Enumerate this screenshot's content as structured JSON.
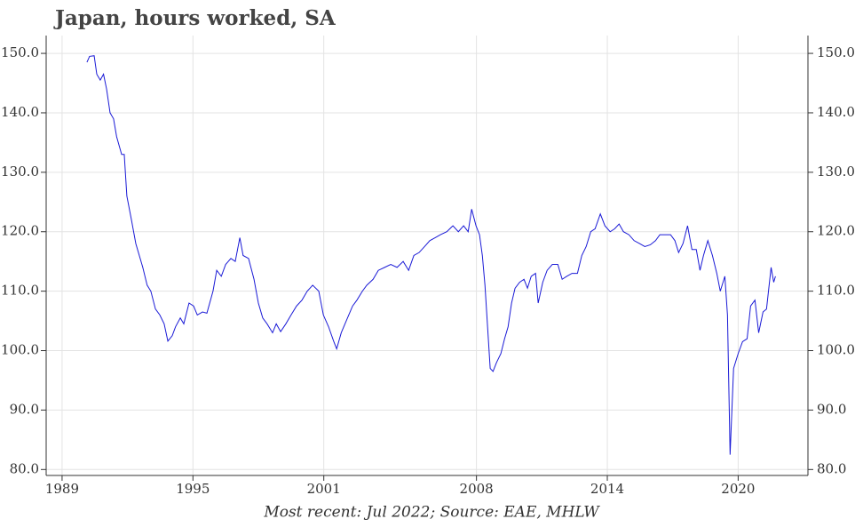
{
  "chart_data": {
    "type": "line",
    "title": "Japan, hours worked, SA",
    "footnote": "Most recent: Jul 2022; Source: EAE, MHLW",
    "color": "#1a1ad6",
    "grid": true,
    "xlim": [
      1988.27,
      2023.2
    ],
    "xticks": [
      1989,
      1995,
      2001,
      2008,
      2014,
      2020
    ],
    "ylim": [
      79,
      153
    ],
    "yticks": [
      {
        "value": 80,
        "label": "80.0"
      },
      {
        "value": 90,
        "label": "90.0"
      },
      {
        "value": 100,
        "label": "100.0"
      },
      {
        "value": 110,
        "label": "110.0"
      },
      {
        "value": 120,
        "label": "120.0"
      },
      {
        "value": 130,
        "label": "130.0"
      },
      {
        "value": 140,
        "label": "140.0"
      },
      {
        "value": 150,
        "label": "150.0"
      }
    ],
    "y2lim": [
      79,
      153
    ],
    "y2ticks": [
      {
        "value": 80,
        "label": "80.0"
      },
      {
        "value": 90,
        "label": "90.0"
      },
      {
        "value": 100,
        "label": "100.0"
      },
      {
        "value": 110,
        "label": "110.0"
      },
      {
        "value": 120,
        "label": "120.0"
      },
      {
        "value": 130,
        "label": "130.0"
      },
      {
        "value": 140,
        "label": "140.0"
      },
      {
        "value": 150,
        "label": "150.0"
      }
    ],
    "x": [
      1990.14,
      1990.26,
      1990.47,
      1990.59,
      1990.75,
      1990.9,
      1991.04,
      1991.2,
      1991.36,
      1991.5,
      1991.73,
      1991.85,
      1991.97,
      1992.18,
      1992.38,
      1992.54,
      1992.7,
      1992.9,
      1993.07,
      1993.28,
      1993.48,
      1993.68,
      1993.85,
      1994.05,
      1994.2,
      1994.42,
      1994.58,
      1994.82,
      1995.03,
      1995.2,
      1995.44,
      1995.64,
      1995.92,
      1996.09,
      1996.3,
      1996.5,
      1996.74,
      1996.94,
      1997.15,
      1997.3,
      1997.55,
      1997.8,
      1998.0,
      1998.2,
      1998.4,
      1998.65,
      1998.82,
      1999.02,
      1999.26,
      1999.5,
      1999.75,
      2000.0,
      2000.24,
      2000.49,
      2000.77,
      2000.98,
      2001.22,
      2001.46,
      2001.59,
      2001.8,
      2002.03,
      2002.32,
      2002.52,
      2002.77,
      2002.97,
      2003.26,
      2003.5,
      2003.79,
      2004.07,
      2004.36,
      2004.64,
      2004.89,
      2005.13,
      2005.37,
      2005.62,
      2005.86,
      2006.11,
      2006.35,
      2006.64,
      2006.92,
      2007.17,
      2007.41,
      2007.62,
      2007.78,
      2007.98,
      2008.14,
      2008.27,
      2008.39,
      2008.51,
      2008.63,
      2008.76,
      2008.92,
      2009.12,
      2009.29,
      2009.45,
      2009.61,
      2009.77,
      2009.98,
      2010.18,
      2010.34,
      2010.51,
      2010.71,
      2010.83,
      2011.04,
      2011.24,
      2011.48,
      2011.73,
      2011.93,
      2012.14,
      2012.38,
      2012.63,
      2012.83,
      2013.03,
      2013.24,
      2013.44,
      2013.68,
      2013.89,
      2014.13,
      2014.34,
      2014.54,
      2014.74,
      2014.99,
      2015.23,
      2015.48,
      2015.72,
      2015.97,
      2016.21,
      2016.41,
      2016.66,
      2016.9,
      2017.1,
      2017.27,
      2017.47,
      2017.68,
      2017.88,
      2018.08,
      2018.25,
      2018.41,
      2018.61,
      2018.82,
      2019.02,
      2019.18,
      2019.39,
      2019.51,
      2019.63,
      2019.79,
      2020.0,
      2020.2,
      2020.41,
      2020.57,
      2020.77,
      2020.94,
      2021.14,
      2021.3,
      2021.51,
      2021.63,
      2021.71
    ],
    "values": [
      148.5,
      149.5,
      149.6,
      146.5,
      145.5,
      146.5,
      144,
      140,
      139,
      136,
      133,
      133,
      126,
      122,
      118,
      116,
      114,
      111,
      110,
      107,
      106,
      104.5,
      101.6,
      102.5,
      104,
      105.5,
      104.5,
      108,
      107.5,
      106,
      106.5,
      106.3,
      110,
      113.5,
      112.5,
      114.5,
      115.5,
      115,
      119,
      116,
      115.5,
      112,
      108,
      105.5,
      104.5,
      103,
      104.5,
      103.2,
      104.5,
      106,
      107.5,
      108.5,
      110,
      111,
      110,
      106,
      104,
      101.5,
      100.3,
      103,
      105,
      107.5,
      108.5,
      110,
      111,
      112,
      113.5,
      114,
      114.5,
      114,
      115,
      113.5,
      116,
      116.5,
      117.5,
      118.5,
      119,
      119.5,
      120,
      121,
      120,
      121,
      120,
      123.8,
      121,
      119.5,
      116,
      111,
      104,
      97,
      96.5,
      98,
      99.5,
      102,
      104,
      108,
      110.5,
      111.5,
      112,
      110.5,
      112.5,
      113,
      108,
      111.5,
      113.5,
      114.5,
      114.5,
      112,
      112.5,
      113,
      113,
      116,
      117.5,
      120,
      120.5,
      123,
      121,
      120,
      120.5,
      121.3,
      120,
      119.5,
      118.5,
      118,
      117.5,
      117.8,
      118.5,
      119.5,
      119.5,
      119.5,
      118.5,
      116.5,
      118,
      121,
      117,
      117,
      113.5,
      116,
      118.5,
      116,
      113,
      110,
      112.5,
      106,
      82.5,
      97,
      99.5,
      101.5,
      102,
      107.5,
      108.5,
      103,
      106.5,
      107,
      114,
      111.5,
      112.5
    ]
  }
}
